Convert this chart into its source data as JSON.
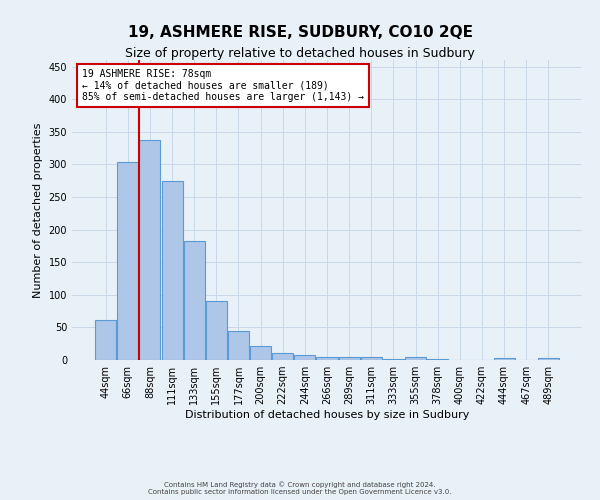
{
  "title": "19, ASHMERE RISE, SUDBURY, CO10 2QE",
  "subtitle": "Size of property relative to detached houses in Sudbury",
  "xlabel": "Distribution of detached houses by size in Sudbury",
  "ylabel": "Number of detached properties",
  "footer_line1": "Contains HM Land Registry data © Crown copyright and database right 2024.",
  "footer_line2": "Contains public sector information licensed under the Open Government Licence v3.0.",
  "categories": [
    "44sqm",
    "66sqm",
    "88sqm",
    "111sqm",
    "133sqm",
    "155sqm",
    "177sqm",
    "200sqm",
    "222sqm",
    "244sqm",
    "266sqm",
    "289sqm",
    "311sqm",
    "333sqm",
    "355sqm",
    "378sqm",
    "400sqm",
    "422sqm",
    "444sqm",
    "467sqm",
    "489sqm"
  ],
  "values": [
    62,
    303,
    338,
    275,
    183,
    90,
    45,
    22,
    11,
    8,
    5,
    4,
    4,
    2,
    4,
    2,
    0,
    0,
    3,
    0,
    3
  ],
  "bar_color": "#aec6e8",
  "bar_edge_color": "#5b9bd5",
  "vline_x": 1.5,
  "vline_color": "#cc0000",
  "annotation_text": "19 ASHMERE RISE: 78sqm\n← 14% of detached houses are smaller (189)\n85% of semi-detached houses are larger (1,143) →",
  "annotation_box_color": "#ffffff",
  "annotation_box_edge": "#cc0000",
  "ylim": [
    0,
    460
  ],
  "yticks": [
    0,
    50,
    100,
    150,
    200,
    250,
    300,
    350,
    400,
    450
  ],
  "grid_color": "#c8d8e8",
  "bg_color": "#e8f0f8",
  "title_fontsize": 11,
  "subtitle_fontsize": 9,
  "xlabel_fontsize": 8,
  "ylabel_fontsize": 8,
  "tick_fontsize": 7,
  "footer_fontsize": 5,
  "ann_fontsize": 7
}
